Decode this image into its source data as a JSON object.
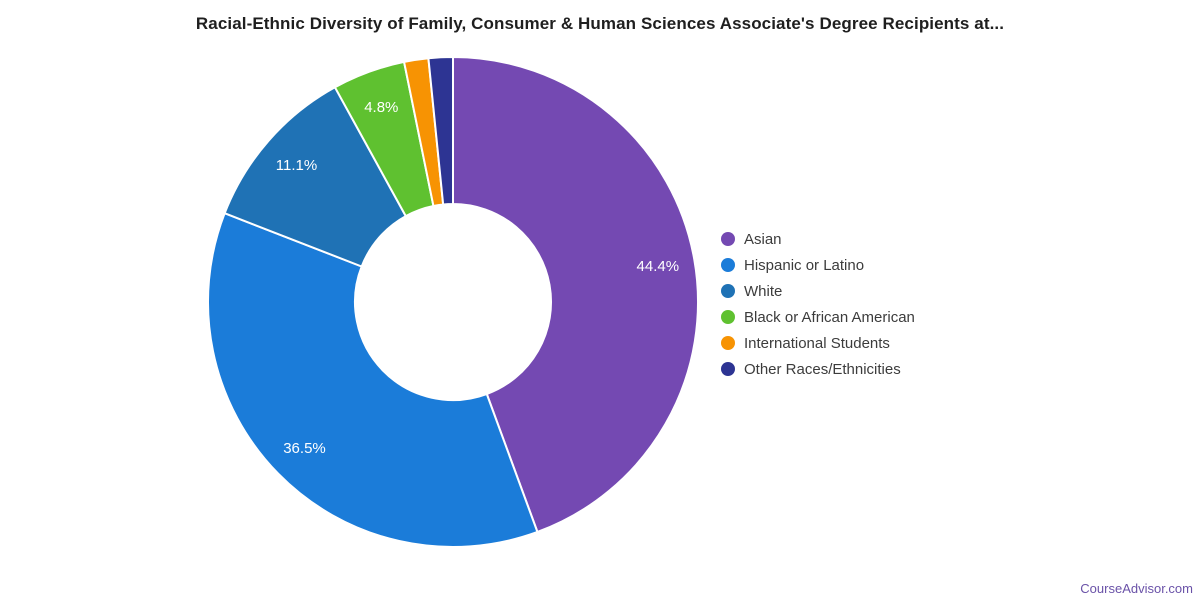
{
  "chart_data": {
    "type": "pie",
    "subtype": "donut",
    "title": "Racial-Ethnic Diversity of Family, Consumer & Human Sciences Associate's Degree Recipients at...",
    "legend_position": "right",
    "donut_hole_ratio": 0.4,
    "slice_label_color": "#ffffff",
    "start_angle_deg": 0,
    "direction": "clockwise",
    "slices": [
      {
        "label": "Asian",
        "value": 44.4,
        "display": "44.4%",
        "show_label": true,
        "color": "#7449b2"
      },
      {
        "label": "Hispanic or Latino",
        "value": 36.5,
        "display": "36.5%",
        "show_label": true,
        "color": "#1b7cd9"
      },
      {
        "label": "White",
        "value": 11.1,
        "display": "11.1%",
        "show_label": true,
        "color": "#1f72b5"
      },
      {
        "label": "Black or African American",
        "value": 4.8,
        "display": "4.8%",
        "show_label": true,
        "color": "#5fc130"
      },
      {
        "label": "International Students",
        "value": 1.6,
        "display": "",
        "show_label": false,
        "color": "#f79303"
      },
      {
        "label": "Other Races/Ethnicities",
        "value": 1.6,
        "display": "",
        "show_label": false,
        "color": "#2d3493"
      }
    ]
  },
  "footer": {
    "text": "CourseAdvisor.com",
    "color": "#6a52a8"
  }
}
